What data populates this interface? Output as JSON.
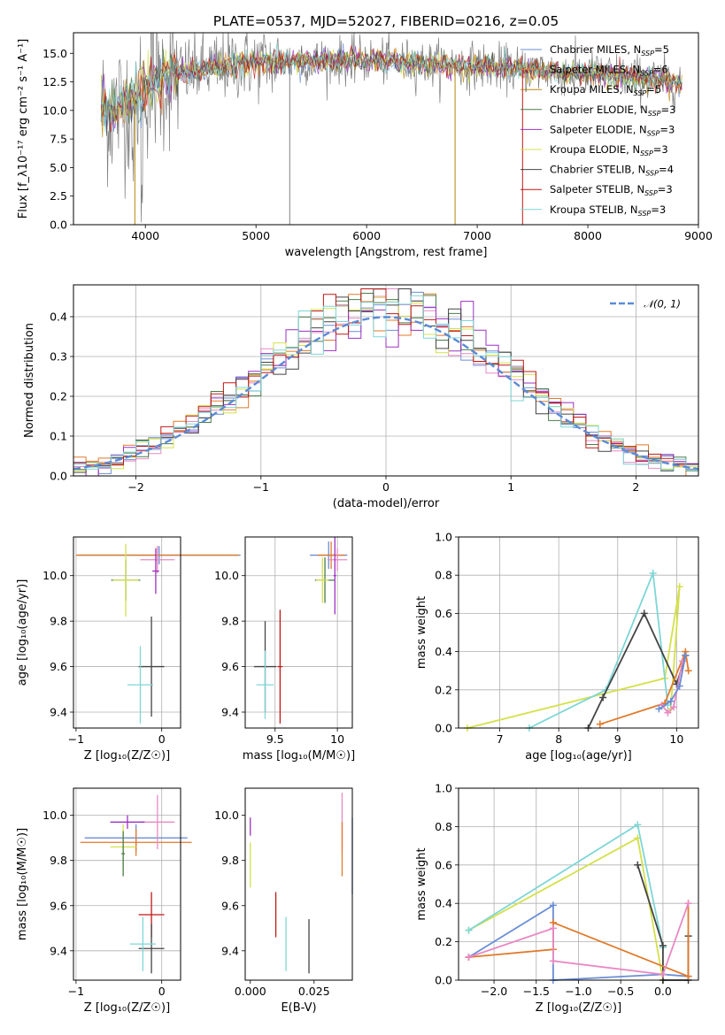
{
  "chart_data": [
    {
      "id": "spectrum",
      "type": "line",
      "title": "PLATE=0537, MJD=52027, FIBERID=0216, z=0.05",
      "xlabel": "wavelength [Angstrom, rest frame]",
      "ylabel": "Flux [f_λ10⁻¹⁷ erg cm⁻² s⁻¹ A⁻¹]",
      "xlim": [
        3350,
        9000
      ],
      "ylim": [
        0,
        16.8
      ],
      "xticks": [
        4000,
        5000,
        6000,
        7000,
        8000,
        9000
      ],
      "yticks": [
        0.0,
        2.5,
        5.0,
        7.5,
        10.0,
        12.5,
        15.0
      ],
      "grid": false,
      "legend_position": "top-right",
      "data_range": [
        3600,
        8850
      ],
      "continuum": {
        "x": [
          3600,
          3700,
          3800,
          3900,
          4000,
          4100,
          4200,
          4300,
          4400,
          4600,
          4800,
          5000,
          5300,
          5600,
          6000,
          6500,
          7000,
          7400,
          7600,
          8000,
          8300,
          8600,
          8850
        ],
        "y": [
          10.0,
          9.8,
          10.6,
          11.0,
          12.0,
          12.7,
          13.0,
          13.2,
          13.4,
          13.7,
          14.1,
          14.2,
          14.3,
          14.35,
          14.4,
          14.1,
          13.9,
          13.6,
          13.5,
          13.2,
          13.0,
          12.7,
          12.5
        ]
      },
      "series": [
        {
          "name": "Chabrier MILES, N_SSP=5",
          "color": "#6a8ed6"
        },
        {
          "name": "Salpeter MILES, N_SSP=6",
          "color": "#e07a2b"
        },
        {
          "name": "Kroupa MILES, N_SSP=5",
          "color": "#b8860b"
        },
        {
          "name": "Chabrier ELODIE, N_SSP=3",
          "color": "#4a7d4a"
        },
        {
          "name": "Salpeter ELODIE, N_SSP=3",
          "color": "#9b30c0"
        },
        {
          "name": "Kroupa ELODIE, N_SSP=3",
          "color": "#d4e04a"
        },
        {
          "name": "Chabrier STELIB, N_SSP=4",
          "color": "#444444"
        },
        {
          "name": "Salpeter STELIB, N_SSP=3",
          "color": "#c01818"
        },
        {
          "name": "Kroupa STELIB, N_SSP=3",
          "color": "#7fd6d6"
        }
      ]
    },
    {
      "id": "residuals",
      "type": "line",
      "xlabel": "(data-model)/error",
      "ylabel": "Normed distribution",
      "xlim": [
        -2.5,
        2.5
      ],
      "ylim": [
        0,
        0.48
      ],
      "xticks": [
        -2,
        -1,
        0,
        1,
        2
      ],
      "yticks": [
        0.0,
        0.1,
        0.2,
        0.3,
        0.4
      ],
      "grid": true,
      "legend_position": "top-right",
      "legend": "𝒩(0, 1)",
      "bin_width": 0.1,
      "series_colors": [
        "#6a8ed6",
        "#e07a2b",
        "#e889c4",
        "#4a7d4a",
        "#9b30c0",
        "#d4e04a",
        "#444444",
        "#c01818",
        "#7fd6d6"
      ]
    },
    {
      "id": "age_vs_Z",
      "type": "scatter",
      "xlabel": "Z [log₁₀(Z/Z☉)]",
      "ylabel": "age  [log₁₀(age/yr)]",
      "xlim": [
        -1.03,
        0.22
      ],
      "ylim": [
        9.33,
        10.17
      ],
      "xticks": [
        -1,
        0
      ],
      "yticks": [
        9.4,
        9.6,
        9.8,
        10.0
      ],
      "grid": true,
      "points": [
        {
          "x": -0.03,
          "y": 10.09,
          "xerr": 0.95,
          "yerr": 0.04,
          "color": "#6a8ed6"
        },
        {
          "x": -0.05,
          "y": 10.09,
          "xerr": 0.95,
          "yerr": 0.04,
          "color": "#e07a2b"
        },
        {
          "x": -0.05,
          "y": 10.07,
          "xerr": 0.2,
          "yerr": 0.06,
          "color": "#e889c4"
        },
        {
          "x": -0.42,
          "y": 9.98,
          "xerr": 0.17,
          "yerr": 0.09,
          "color": "#4a7d4a"
        },
        {
          "x": -0.42,
          "y": 9.98,
          "xerr": 0.15,
          "yerr": 0.16,
          "color": "#d4e04a"
        },
        {
          "x": -0.07,
          "y": 10.02,
          "xerr": 0.04,
          "yerr": 0.1,
          "color": "#9b30c0"
        },
        {
          "x": -0.12,
          "y": 9.6,
          "xerr": 0.15,
          "yerr": 0.22,
          "color": "#444444"
        },
        {
          "x": -0.25,
          "y": 9.52,
          "xerr": 0.15,
          "yerr": 0.17,
          "color": "#7fd6d6"
        }
      ]
    },
    {
      "id": "age_vs_mass",
      "type": "scatter",
      "xlabel": "mass [log₁₀(M/M☉)]",
      "ylabel": "",
      "xlim": [
        9.26,
        10.12
      ],
      "ylim": [
        9.33,
        10.17
      ],
      "xticks": [
        9.5,
        10.0
      ],
      "yticks": [
        9.4,
        9.6,
        9.8,
        10.0
      ],
      "grid": true,
      "points": [
        {
          "x": 9.93,
          "y": 10.09,
          "xerr": 0.15,
          "yerr": 0.06,
          "color": "#6a8ed6"
        },
        {
          "x": 9.95,
          "y": 10.09,
          "xerr": 0.11,
          "yerr": 0.06,
          "color": "#e07a2b"
        },
        {
          "x": 10.0,
          "y": 10.07,
          "xerr": 0.08,
          "yerr": 0.05,
          "color": "#e889c4"
        },
        {
          "x": 9.9,
          "y": 9.98,
          "xerr": 0.08,
          "yerr": 0.1,
          "color": "#4a7d4a"
        },
        {
          "x": 9.88,
          "y": 9.98,
          "xerr": 0.05,
          "yerr": 0.1,
          "color": "#d4e04a"
        },
        {
          "x": 9.98,
          "y": 10.0,
          "xerr": 0.01,
          "yerr": 0.17,
          "color": "#9b30c0"
        },
        {
          "x": 9.42,
          "y": 9.6,
          "xerr": 0.09,
          "yerr": 0.2,
          "color": "#444444"
        },
        {
          "x": 9.54,
          "y": 9.6,
          "xerr": 0.02,
          "yerr": 0.25,
          "color": "#c01818"
        },
        {
          "x": 9.42,
          "y": 9.52,
          "xerr": 0.07,
          "yerr": 0.15,
          "color": "#7fd6d6"
        }
      ]
    },
    {
      "id": "mass_weight_vs_age",
      "type": "line",
      "xlabel": "age  [log₁₀(age/yr)]",
      "ylabel": "mass weight",
      "xlim": [
        6.3,
        10.37
      ],
      "ylim": [
        0,
        1.0
      ],
      "xticks": [
        7,
        8,
        9,
        10
      ],
      "yticks": [
        0.0,
        0.2,
        0.4,
        0.6,
        0.8,
        1.0
      ],
      "grid": true,
      "series": [
        {
          "color": "#d4e04a",
          "x": [
            6.45,
            9.8,
            10.05,
            9.9
          ],
          "y": [
            0.0,
            0.26,
            0.74,
            0.1
          ]
        },
        {
          "color": "#7fd6d6",
          "x": [
            7.5,
            8.8,
            9.6,
            9.85
          ],
          "y": [
            0.0,
            0.2,
            0.81,
            0.12
          ]
        },
        {
          "color": "#444444",
          "x": [
            8.5,
            8.75,
            9.45,
            10.0,
            10.15
          ],
          "y": [
            0.0,
            0.16,
            0.6,
            0.23,
            0.38
          ]
        },
        {
          "color": "#e07a2b",
          "x": [
            8.7,
            9.8,
            10.15,
            10.2
          ],
          "y": [
            0.02,
            0.13,
            0.4,
            0.3
          ]
        },
        {
          "color": "#e889c4",
          "x": [
            9.75,
            9.85,
            9.95,
            10.1
          ],
          "y": [
            0.12,
            0.08,
            0.11,
            0.35
          ]
        },
        {
          "color": "#6a8ed6",
          "x": [
            9.7,
            9.9,
            10.05,
            10.15
          ],
          "y": [
            0.1,
            0.14,
            0.22,
            0.38
          ]
        }
      ]
    },
    {
      "id": "mass_vs_Z",
      "type": "scatter",
      "xlabel": "Z [log₁₀(Z/Z☉)]",
      "ylabel": "mass [log₁₀(M/M☉)]",
      "xlim": [
        -1.03,
        0.22
      ],
      "ylim": [
        9.27,
        10.12
      ],
      "xticks": [
        -1,
        0
      ],
      "yticks": [
        9.4,
        9.6,
        9.8,
        10.0
      ],
      "grid": true,
      "points": [
        {
          "x": -0.3,
          "y": 9.9,
          "xerr": 0.6,
          "yerr": 0.06,
          "color": "#6a8ed6"
        },
        {
          "x": -0.3,
          "y": 9.88,
          "xerr": 0.65,
          "yerr": 0.06,
          "color": "#e07a2b"
        },
        {
          "x": -0.05,
          "y": 9.97,
          "xerr": 0.2,
          "yerr": 0.12,
          "color": "#e889c4"
        },
        {
          "x": -0.4,
          "y": 9.97,
          "xerr": 0.2,
          "yerr": 0.03,
          "color": "#9b30c0"
        },
        {
          "x": -0.45,
          "y": 9.86,
          "xerr": 0.15,
          "yerr": 0.1,
          "color": "#d4e04a"
        },
        {
          "x": -0.45,
          "y": 9.83,
          "xerr": 0.02,
          "yerr": 0.1,
          "color": "#4a7d4a"
        },
        {
          "x": -0.12,
          "y": 9.56,
          "xerr": 0.15,
          "yerr": 0.1,
          "color": "#c01818"
        },
        {
          "x": -0.12,
          "y": 9.41,
          "xerr": 0.15,
          "yerr": 0.11,
          "color": "#444444"
        },
        {
          "x": -0.22,
          "y": 9.43,
          "xerr": 0.15,
          "yerr": 0.12,
          "color": "#7fd6d6"
        }
      ]
    },
    {
      "id": "mass_vs_EBV",
      "type": "scatter",
      "xlabel": "E(B-V)",
      "ylabel": "",
      "xlim": [
        -0.002,
        0.04
      ],
      "ylim": [
        9.27,
        10.12
      ],
      "xticks": [
        0.0,
        0.025
      ],
      "xticklabels": [
        "0.000",
        "0.025"
      ],
      "yticks": [
        9.4,
        9.6,
        9.8,
        10.0
      ],
      "grid": false,
      "points": [
        {
          "x": 0.0,
          "y": 9.95,
          "yerr": 0.04,
          "color": "#9b30c0"
        },
        {
          "x": 0.0,
          "y": 9.78,
          "yerr": 0.1,
          "color": "#d4e04a"
        },
        {
          "x": 0.01,
          "y": 9.56,
          "yerr": 0.1,
          "color": "#c01818"
        },
        {
          "x": 0.014,
          "y": 9.43,
          "yerr": 0.12,
          "color": "#7fd6d6"
        },
        {
          "x": 0.023,
          "y": 9.42,
          "yerr": 0.12,
          "color": "#444444"
        },
        {
          "x": 0.036,
          "y": 9.97,
          "yerr": 0.13,
          "color": "#e889c4"
        },
        {
          "x": 0.036,
          "y": 9.85,
          "yerr": 0.12,
          "color": "#e07a2b"
        },
        {
          "x": 0.04,
          "y": 9.82,
          "yerr": 0.17,
          "color": "#6a8ed6"
        }
      ]
    },
    {
      "id": "mass_weight_vs_Z",
      "type": "line",
      "xlabel": "Z [log₁₀(Z/Z☉)]",
      "ylabel": "mass weight",
      "xlim": [
        -2.42,
        0.42
      ],
      "ylim": [
        0,
        1.0
      ],
      "xticks": [
        -2.0,
        -1.5,
        -1.0,
        -0.5,
        0.0
      ],
      "xticklabels": [
        "−2.0",
        "−1.5",
        "−1.0",
        "−0.5",
        "0.0"
      ],
      "yticks": [
        0.0,
        0.2,
        0.4,
        0.6,
        0.8,
        1.0
      ],
      "grid": true,
      "series": [
        {
          "color": "#d4e04a",
          "x": [
            -2.3,
            -0.3,
            0.0
          ],
          "y": [
            0.26,
            0.74,
            0.0
          ]
        },
        {
          "color": "#7fd6d6",
          "x": [
            -2.3,
            -0.3,
            0.0
          ],
          "y": [
            0.26,
            0.81,
            0.17
          ]
        },
        {
          "color": "#444444",
          "x": [
            -0.3,
            0.0,
            0.0,
            0.3,
            0.3
          ],
          "y": [
            0.6,
            0.18,
            0.0,
            0.0,
            0.23
          ]
        },
        {
          "color": "#6a8ed6",
          "x": [
            -2.3,
            -1.3,
            -1.3,
            0.0,
            0.3
          ],
          "y": [
            0.12,
            0.39,
            0.0,
            0.03,
            0.02
          ]
        },
        {
          "color": "#e07a2b",
          "x": [
            -2.3,
            -1.3,
            -1.3,
            0.3,
            0.3
          ],
          "y": [
            0.12,
            0.16,
            0.3,
            0.02,
            0.4
          ]
        },
        {
          "color": "#e889c4",
          "x": [
            -2.3,
            -1.3,
            -1.3,
            0.0,
            0.3
          ],
          "y": [
            0.12,
            0.27,
            0.1,
            0.03,
            0.4
          ]
        }
      ]
    }
  ]
}
